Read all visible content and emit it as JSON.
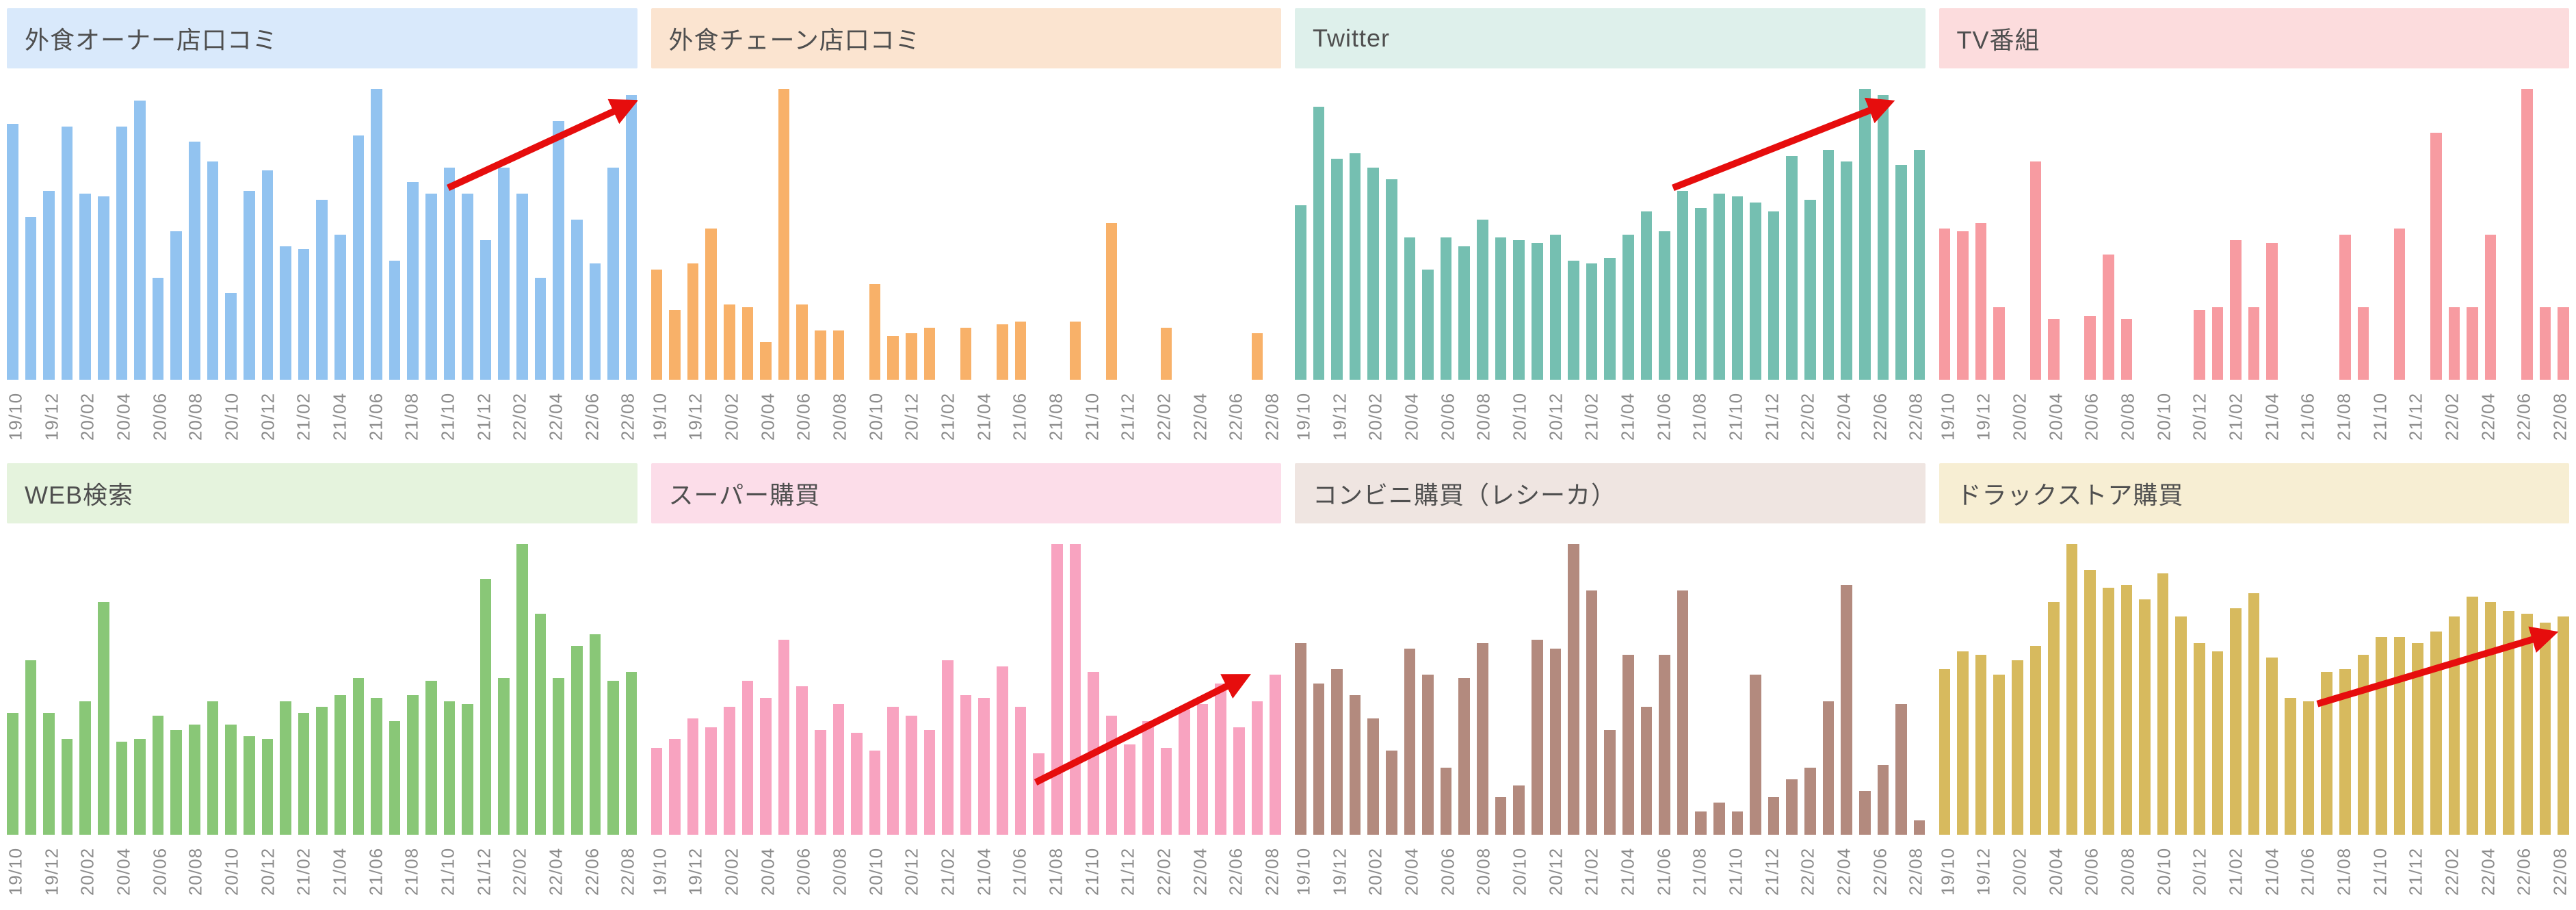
{
  "page": {
    "background": "#ffffff",
    "title_color": "#4f4f4f",
    "tick_color": "#8c8c8c",
    "arrow_color": "#e60d0d"
  },
  "chart_data": {
    "type": "bar",
    "grid_layout": "4 columns x 2 rows of small-multiple bar charts, monthly data, no y-axis shown, no gridlines",
    "values_are": "relative-height-percent (0-100, estimated from pixels; source shows no numeric axis)",
    "ylim": [
      0,
      100
    ],
    "categories": [
      "19/10",
      "19/11",
      "19/12",
      "20/01",
      "20/02",
      "20/03",
      "20/04",
      "20/05",
      "20/06",
      "20/07",
      "20/08",
      "20/09",
      "20/10",
      "20/11",
      "20/12",
      "21/01",
      "21/02",
      "21/03",
      "21/04",
      "21/05",
      "21/06",
      "21/07",
      "21/08",
      "21/09",
      "21/10",
      "21/11",
      "21/12",
      "22/01",
      "22/02",
      "22/03",
      "22/04",
      "22/05",
      "22/06",
      "22/07",
      "22/08"
    ],
    "tick_labels": [
      "19/10",
      "19/12",
      "20/02",
      "20/04",
      "20/06",
      "20/08",
      "20/10",
      "20/12",
      "21/02",
      "21/04",
      "21/06",
      "21/08",
      "21/10",
      "21/12",
      "22/02",
      "22/04",
      "22/06",
      "22/08"
    ],
    "tick_shown_every": 2,
    "tick_rotation_deg": -90,
    "charts": [
      {
        "name": "外食オーナー店口コミ",
        "header_bg": "#d9e9fb",
        "bar_color": "#92c3f0",
        "values": [
          88,
          56,
          65,
          87,
          64,
          63,
          87,
          96,
          35,
          51,
          82,
          75,
          30,
          65,
          72,
          46,
          45,
          62,
          50,
          84,
          100,
          41,
          68,
          64,
          73,
          64,
          48,
          73,
          64,
          35,
          89,
          55,
          40,
          73,
          98
        ],
        "trend_arrow": {
          "x1": 70,
          "y1": 34,
          "x2": 99,
          "y2": 5
        }
      },
      {
        "name": "外食チェーン店口コミ",
        "header_bg": "#fbe4d0",
        "bar_color": "#f8b169",
        "values": [
          38,
          24,
          40,
          52,
          26,
          25,
          13,
          100,
          26,
          17,
          17,
          0,
          33,
          15,
          16,
          18,
          0,
          18,
          0,
          19,
          20,
          0,
          0,
          20,
          0,
          54,
          0,
          0,
          18,
          0,
          0,
          0,
          0,
          16,
          0
        ],
        "trend_arrow": null
      },
      {
        "name": "Twitter",
        "header_bg": "#def0eb",
        "bar_color": "#75bfb1",
        "values": [
          60,
          94,
          76,
          78,
          73,
          69,
          49,
          38,
          49,
          46,
          55,
          49,
          48,
          47,
          50,
          41,
          40,
          42,
          50,
          58,
          51,
          65,
          59,
          64,
          63,
          61,
          58,
          77,
          62,
          79,
          75,
          100,
          98,
          74,
          79
        ],
        "trend_arrow": {
          "x1": 60,
          "y1": 34,
          "x2": 94,
          "y2": 5
        }
      },
      {
        "name": "TV番組",
        "header_bg": "#fcdcdd",
        "bar_color": "#f79ba1",
        "values": [
          52,
          51,
          54,
          25,
          0,
          75,
          21,
          0,
          22,
          43,
          21,
          0,
          0,
          0,
          24,
          25,
          48,
          25,
          47,
          0,
          0,
          0,
          50,
          25,
          0,
          52,
          0,
          85,
          25,
          25,
          50,
          0,
          100,
          25,
          25
        ],
        "trend_arrow": null
      },
      {
        "name": "WEB検索",
        "header_bg": "#e5f3dd",
        "bar_color": "#89c777",
        "values": [
          42,
          60,
          42,
          33,
          46,
          80,
          32,
          33,
          41,
          36,
          38,
          46,
          38,
          34,
          33,
          46,
          42,
          44,
          48,
          54,
          47,
          39,
          48,
          53,
          46,
          45,
          88,
          54,
          100,
          76,
          54,
          65,
          69,
          53,
          56
        ],
        "trend_arrow": null
      },
      {
        "name": "スーパー購買",
        "header_bg": "#fcdde9",
        "bar_color": "#f8a3c0",
        "values": [
          30,
          33,
          40,
          37,
          44,
          53,
          47,
          67,
          51,
          36,
          45,
          35,
          29,
          44,
          41,
          36,
          60,
          48,
          47,
          58,
          44,
          28,
          100,
          100,
          56,
          41,
          31,
          39,
          30,
          43,
          45,
          52,
          37,
          46,
          55
        ],
        "trend_arrow": {
          "x1": 61,
          "y1": 82,
          "x2": 94,
          "y2": 46
        }
      },
      {
        "name": "コンビニ購買（レシーカ）",
        "header_bg": "#efe5e1",
        "bar_color": "#b38a7e",
        "values": [
          66,
          52,
          57,
          48,
          40,
          29,
          64,
          55,
          23,
          54,
          66,
          13,
          17,
          67,
          64,
          100,
          84,
          36,
          62,
          44,
          62,
          84,
          8,
          11,
          8,
          55,
          13,
          19,
          23,
          46,
          86,
          15,
          24,
          45,
          5
        ],
        "trend_arrow": null
      },
      {
        "name": "ドラックストア購買",
        "header_bg": "#f7eed3",
        "bar_color": "#d7ba5e",
        "values": [
          57,
          63,
          62,
          55,
          60,
          65,
          80,
          100,
          91,
          85,
          86,
          81,
          90,
          75,
          66,
          63,
          78,
          83,
          61,
          47,
          46,
          56,
          57,
          62,
          68,
          68,
          66,
          70,
          75,
          82,
          80,
          77,
          76,
          73,
          75
        ],
        "trend_arrow": {
          "x1": 60,
          "y1": 55,
          "x2": 97,
          "y2": 31
        }
      }
    ]
  }
}
